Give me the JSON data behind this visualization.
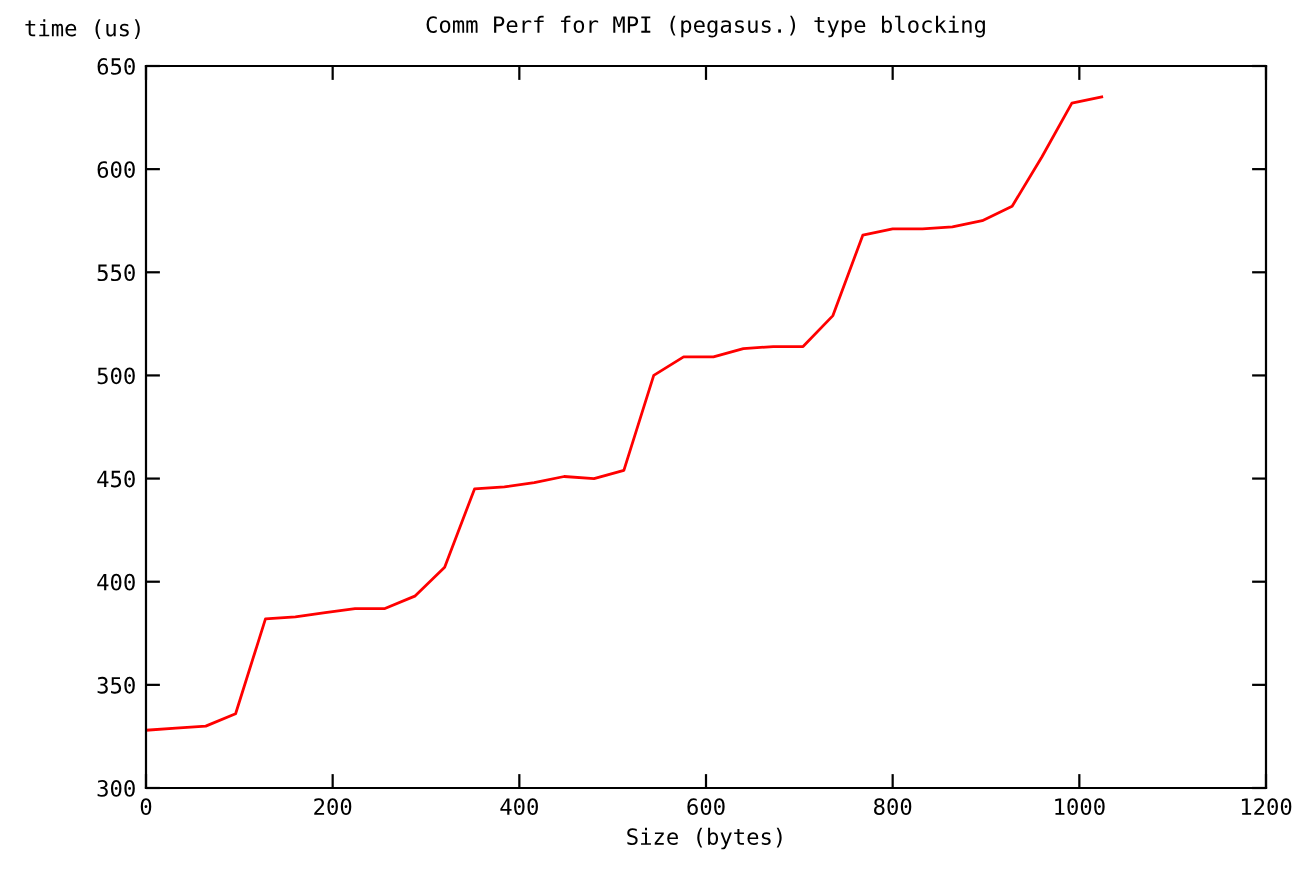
{
  "chart_data": {
    "type": "line",
    "title": "Comm Perf for MPI (pegasus.) type blocking",
    "xlabel": "Size (bytes)",
    "ylabel": "time (us)",
    "x": [
      0,
      32,
      64,
      96,
      128,
      160,
      192,
      224,
      256,
      288,
      320,
      352,
      384,
      416,
      448,
      480,
      512,
      544,
      576,
      608,
      640,
      672,
      704,
      736,
      768,
      800,
      832,
      864,
      896,
      928,
      960,
      992,
      1024
    ],
    "series": [
      {
        "color": "#ff0000",
        "values": [
          328,
          329,
          330,
          336,
          382,
          383,
          385,
          387,
          387,
          393,
          407,
          445,
          446,
          448,
          451,
          450,
          454,
          500,
          509,
          509,
          513,
          514,
          514,
          529,
          568,
          571,
          571,
          572,
          575,
          582,
          606,
          632,
          635
        ]
      }
    ],
    "xlim": [
      0,
      1200
    ],
    "xticks": [
      0,
      200,
      400,
      600,
      800,
      1000,
      1200
    ],
    "ylim": [
      300,
      650
    ],
    "yticks": [
      300,
      350,
      400,
      450,
      500,
      550,
      600,
      650
    ],
    "grid": false,
    "legend": false
  }
}
